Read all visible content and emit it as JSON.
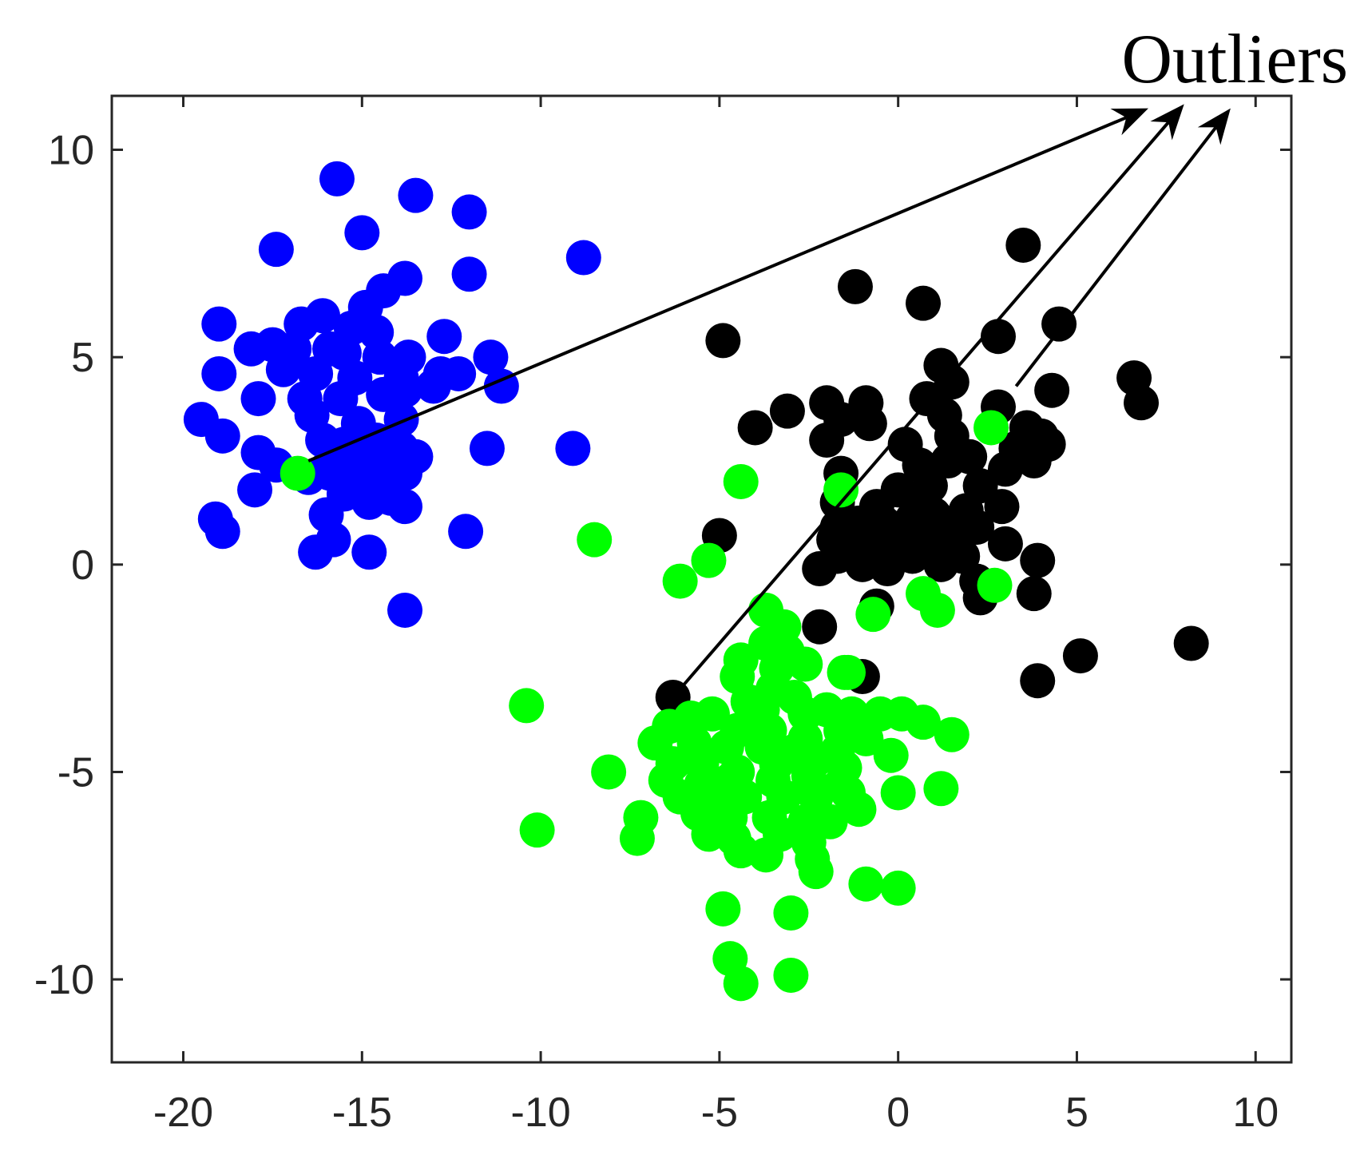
{
  "chart_data": {
    "type": "scatter",
    "title": "",
    "xlabel": "",
    "ylabel": "",
    "xlim": [
      -22,
      11
    ],
    "ylim": [
      -12,
      11.3
    ],
    "xticks": [
      -20,
      -15,
      -10,
      -5,
      0,
      5,
      10
    ],
    "yticks": [
      -10,
      -5,
      0,
      5,
      10
    ],
    "grid": false,
    "legend": "none",
    "annotation": {
      "text": "Outliers",
      "arrows": [
        {
          "from": [
            -16.5,
            2.5
          ],
          "to": [
            7.0,
            11.0
          ]
        },
        {
          "from": [
            -6.3,
            -3.2
          ],
          "to": [
            8.0,
            11.1
          ]
        },
        {
          "from": [
            3.3,
            4.3
          ],
          "to": [
            9.3,
            11.0
          ]
        }
      ]
    },
    "series": [
      {
        "color": "#0000ff",
        "points": [
          [
            -15.7,
            9.3
          ],
          [
            -13.5,
            8.9
          ],
          [
            -12.0,
            8.5
          ],
          [
            -15.0,
            8.0
          ],
          [
            -17.4,
            7.6
          ],
          [
            -12.0,
            7.0
          ],
          [
            -13.8,
            6.9
          ],
          [
            -14.4,
            6.6
          ],
          [
            -14.9,
            6.2
          ],
          [
            -19.0,
            5.8
          ],
          [
            -16.7,
            5.8
          ],
          [
            -16.1,
            6.0
          ],
          [
            -15.3,
            5.7
          ],
          [
            -14.6,
            5.6
          ],
          [
            -12.7,
            5.5
          ],
          [
            -18.1,
            5.2
          ],
          [
            -17.5,
            5.3
          ],
          [
            -16.9,
            5.2
          ],
          [
            -15.9,
            5.2
          ],
          [
            -15.5,
            5.1
          ],
          [
            -14.5,
            5.0
          ],
          [
            -13.7,
            5.0
          ],
          [
            -11.4,
            5.0
          ],
          [
            -19.0,
            4.6
          ],
          [
            -17.2,
            4.7
          ],
          [
            -16.3,
            4.6
          ],
          [
            -15.2,
            4.5
          ],
          [
            -13.9,
            4.5
          ],
          [
            -12.8,
            4.6
          ],
          [
            -12.3,
            4.6
          ],
          [
            -17.9,
            4.0
          ],
          [
            -16.6,
            4.0
          ],
          [
            -15.6,
            4.0
          ],
          [
            -14.4,
            4.1
          ],
          [
            -13.8,
            4.2
          ],
          [
            -13.0,
            4.3
          ],
          [
            -11.1,
            4.3
          ],
          [
            -19.5,
            3.5
          ],
          [
            -16.4,
            3.6
          ],
          [
            -15.1,
            3.4
          ],
          [
            -13.9,
            3.5
          ],
          [
            -18.9,
            3.1
          ],
          [
            -17.9,
            2.7
          ],
          [
            -17.4,
            2.4
          ],
          [
            -16.1,
            3.0
          ],
          [
            -15.5,
            2.9
          ],
          [
            -14.6,
            3.0
          ],
          [
            -13.9,
            2.8
          ],
          [
            -11.5,
            2.8
          ],
          [
            -9.1,
            2.8
          ],
          [
            -16.0,
            2.3
          ],
          [
            -15.2,
            2.6
          ],
          [
            -14.6,
            2.3
          ],
          [
            -13.5,
            2.6
          ],
          [
            -18.0,
            1.8
          ],
          [
            -16.5,
            2.1
          ],
          [
            -15.9,
            2.2
          ],
          [
            -15.1,
            2.0
          ],
          [
            -14.3,
            2.1
          ],
          [
            -13.8,
            2.2
          ],
          [
            -15.5,
            1.7
          ],
          [
            -14.8,
            1.5
          ],
          [
            -14.2,
            1.6
          ],
          [
            -13.8,
            1.4
          ],
          [
            -16.0,
            1.2
          ],
          [
            -19.1,
            1.1
          ],
          [
            -18.9,
            0.8
          ],
          [
            -15.8,
            0.6
          ],
          [
            -16.3,
            0.3
          ],
          [
            -12.1,
            0.8
          ],
          [
            -14.8,
            0.3
          ],
          [
            -13.8,
            -1.1
          ],
          [
            -8.8,
            7.4
          ]
        ]
      },
      {
        "color": "#000000",
        "points": [
          [
            3.5,
            7.7
          ],
          [
            -1.2,
            6.7
          ],
          [
            0.7,
            6.3
          ],
          [
            -4.9,
            5.4
          ],
          [
            2.8,
            5.5
          ],
          [
            4.5,
            5.8
          ],
          [
            1.2,
            4.8
          ],
          [
            1.5,
            4.4
          ],
          [
            4.3,
            4.2
          ],
          [
            6.6,
            4.5
          ],
          [
            6.8,
            3.9
          ],
          [
            -2.0,
            3.9
          ],
          [
            -0.9,
            3.9
          ],
          [
            -1.6,
            3.5
          ],
          [
            -0.8,
            3.4
          ],
          [
            -3.1,
            3.7
          ],
          [
            -4.0,
            3.3
          ],
          [
            0.8,
            4.0
          ],
          [
            1.3,
            3.6
          ],
          [
            2.8,
            3.8
          ],
          [
            3.6,
            3.3
          ],
          [
            -2.0,
            3.0
          ],
          [
            0.2,
            2.9
          ],
          [
            1.5,
            3.1
          ],
          [
            4.0,
            3.1
          ],
          [
            3.3,
            2.8
          ],
          [
            4.2,
            2.9
          ],
          [
            -1.6,
            2.2
          ],
          [
            0.6,
            2.4
          ],
          [
            1.4,
            2.5
          ],
          [
            2.0,
            2.6
          ],
          [
            3.0,
            2.3
          ],
          [
            3.8,
            2.5
          ],
          [
            0.0,
            1.8
          ],
          [
            0.9,
            1.9
          ],
          [
            2.3,
            1.9
          ],
          [
            -1.7,
            1.5
          ],
          [
            -0.6,
            1.4
          ],
          [
            0.6,
            1.5
          ],
          [
            1.9,
            1.3
          ],
          [
            2.9,
            1.4
          ],
          [
            -1.7,
            0.9
          ],
          [
            -1.1,
            1.0
          ],
          [
            -0.4,
            1.0
          ],
          [
            0.4,
            1.1
          ],
          [
            1.0,
            1.2
          ],
          [
            1.6,
            0.9
          ],
          [
            2.2,
            0.9
          ],
          [
            3.0,
            0.5
          ],
          [
            -5.0,
            0.7
          ],
          [
            -1.8,
            0.6
          ],
          [
            -0.9,
            0.5
          ],
          [
            -0.4,
            0.4
          ],
          [
            0.2,
            0.5
          ],
          [
            0.7,
            0.5
          ],
          [
            1.2,
            0.7
          ],
          [
            -2.2,
            -0.1
          ],
          [
            -1.7,
            0.2
          ],
          [
            -1.0,
            0.0
          ],
          [
            -0.3,
            -0.1
          ],
          [
            0.4,
            0.2
          ],
          [
            1.2,
            0.0
          ],
          [
            1.8,
            0.2
          ],
          [
            2.2,
            -0.4
          ],
          [
            2.3,
            -0.8
          ],
          [
            3.9,
            0.1
          ],
          [
            3.8,
            -0.7
          ],
          [
            -2.2,
            -1.5
          ],
          [
            -0.6,
            -1.0
          ],
          [
            -1.0,
            -2.7
          ],
          [
            5.1,
            -2.2
          ],
          [
            3.9,
            -2.8
          ],
          [
            8.2,
            -1.9
          ],
          [
            -6.3,
            -3.2
          ]
        ]
      },
      {
        "color": "#00ff00",
        "points": [
          [
            2.6,
            3.3
          ],
          [
            -4.4,
            2.0
          ],
          [
            -1.6,
            1.8
          ],
          [
            -8.5,
            0.6
          ],
          [
            -5.3,
            0.1
          ],
          [
            -6.1,
            -0.4
          ],
          [
            2.7,
            -0.5
          ],
          [
            0.7,
            -0.7
          ],
          [
            1.1,
            -1.1
          ],
          [
            -0.7,
            -1.2
          ],
          [
            -3.7,
            -1.1
          ],
          [
            -3.2,
            -1.5
          ],
          [
            -3.7,
            -1.9
          ],
          [
            -3.1,
            -2.1
          ],
          [
            -4.4,
            -2.3
          ],
          [
            -3.4,
            -2.5
          ],
          [
            -2.6,
            -2.4
          ],
          [
            -1.5,
            -2.6
          ],
          [
            -4.5,
            -2.7
          ],
          [
            -3.5,
            -3.0
          ],
          [
            -2.9,
            -3.2
          ],
          [
            -4.2,
            -3.3
          ],
          [
            -3.8,
            -3.5
          ],
          [
            -2.6,
            -3.6
          ],
          [
            -2.0,
            -3.5
          ],
          [
            -1.3,
            -3.6
          ],
          [
            -0.5,
            -3.6
          ],
          [
            -5.2,
            -3.6
          ],
          [
            -5.8,
            -3.7
          ],
          [
            -6.4,
            -3.9
          ],
          [
            -4.5,
            -4.0
          ],
          [
            -3.6,
            -4.0
          ],
          [
            -2.6,
            -4.2
          ],
          [
            -1.6,
            -4.0
          ],
          [
            -0.9,
            -4.2
          ],
          [
            1.5,
            -4.1
          ],
          [
            -6.8,
            -4.3
          ],
          [
            -5.7,
            -4.3
          ],
          [
            -4.8,
            -4.4
          ],
          [
            -3.8,
            -4.4
          ],
          [
            -2.9,
            -4.5
          ],
          [
            -1.7,
            -4.5
          ],
          [
            -6.3,
            -4.8
          ],
          [
            -5.5,
            -4.8
          ],
          [
            -4.5,
            -5.0
          ],
          [
            -3.4,
            -4.8
          ],
          [
            -2.3,
            -4.7
          ],
          [
            -1.5,
            -4.9
          ],
          [
            -0.2,
            -4.6
          ],
          [
            -8.1,
            -5.0
          ],
          [
            -6.5,
            -5.2
          ],
          [
            -5.5,
            -5.3
          ],
          [
            -4.7,
            -5.2
          ],
          [
            -3.5,
            -5.2
          ],
          [
            -2.5,
            -5.1
          ],
          [
            -1.6,
            -5.3
          ],
          [
            -6.1,
            -5.6
          ],
          [
            -5.2,
            -5.6
          ],
          [
            -4.3,
            -5.6
          ],
          [
            -3.2,
            -5.6
          ],
          [
            -2.3,
            -5.6
          ],
          [
            -1.4,
            -5.5
          ],
          [
            0.0,
            -5.5
          ],
          [
            1.2,
            -5.4
          ],
          [
            -7.2,
            -6.1
          ],
          [
            -5.6,
            -6.0
          ],
          [
            -4.7,
            -6.1
          ],
          [
            -3.6,
            -6.1
          ],
          [
            -2.6,
            -6.2
          ],
          [
            -1.9,
            -6.2
          ],
          [
            -1.1,
            -5.9
          ],
          [
            -10.1,
            -6.4
          ],
          [
            -7.3,
            -6.6
          ],
          [
            -5.3,
            -6.5
          ],
          [
            -4.6,
            -6.6
          ],
          [
            -3.3,
            -6.5
          ],
          [
            -2.5,
            -6.7
          ],
          [
            -4.4,
            -6.9
          ],
          [
            -3.7,
            -7.0
          ],
          [
            -2.4,
            -7.1
          ],
          [
            -2.3,
            -7.4
          ],
          [
            -0.9,
            -7.7
          ],
          [
            0.0,
            -7.8
          ],
          [
            -4.9,
            -8.3
          ],
          [
            -3.0,
            -8.4
          ],
          [
            -4.7,
            -9.5
          ],
          [
            -4.4,
            -10.1
          ],
          [
            -3.0,
            -9.9
          ],
          [
            -10.4,
            -3.4
          ],
          [
            -1.4,
            -2.6
          ],
          [
            -16.8,
            2.2
          ],
          [
            0.1,
            -3.6
          ],
          [
            0.7,
            -3.8
          ]
        ]
      }
    ]
  }
}
